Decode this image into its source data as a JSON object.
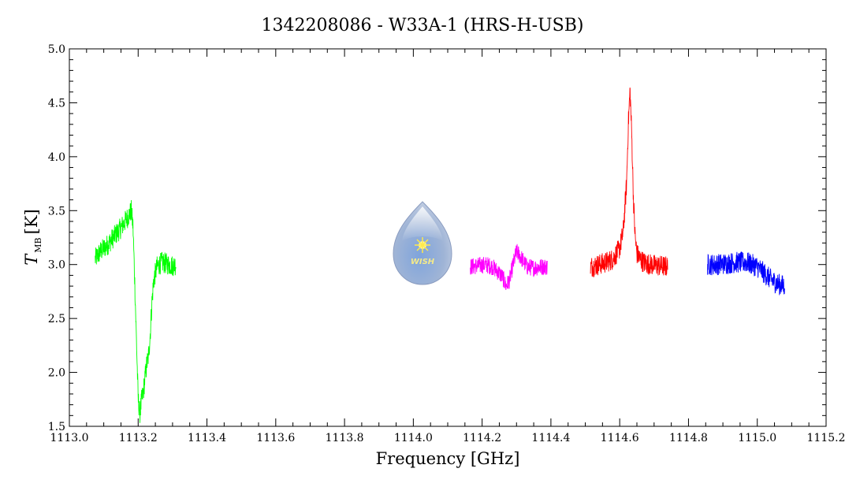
{
  "chart_data": {
    "type": "line",
    "title": "1342208086 - W33A-1 (HRS-H-USB)",
    "xlabel": "Frequency [GHz]",
    "ylabel_main": "T",
    "ylabel_sub": "MB",
    "ylabel_unit": "[K]",
    "xlim": [
      1113.0,
      1115.2
    ],
    "ylim": [
      1.5,
      5.0
    ],
    "x_ticks": [
      "1113.0",
      "1113.2",
      "1113.4",
      "1113.6",
      "1113.8",
      "1114.0",
      "1114.2",
      "1114.4",
      "1114.6",
      "1114.8",
      "1115.0",
      "1115.2"
    ],
    "y_ticks": [
      "1.5",
      "2.0",
      "2.5",
      "3.0",
      "3.5",
      "4.0",
      "4.5",
      "5.0"
    ],
    "grid": false,
    "logo_text": "WISH",
    "series": [
      {
        "color": "#00ff00",
        "x": [
          1113.075,
          1113.09,
          1113.11,
          1113.13,
          1113.15,
          1113.17,
          1113.18,
          1113.185,
          1113.19,
          1113.195,
          1113.2,
          1113.205,
          1113.21,
          1113.215,
          1113.22,
          1113.225,
          1113.23,
          1113.235,
          1113.24,
          1113.245,
          1113.25,
          1113.255,
          1113.26,
          1113.27,
          1113.28,
          1113.29,
          1113.3,
          1113.31
        ],
        "y": [
          3.05,
          3.12,
          3.18,
          3.26,
          3.34,
          3.44,
          3.5,
          3.35,
          2.85,
          2.3,
          1.75,
          1.62,
          1.74,
          1.82,
          1.95,
          2.08,
          2.15,
          2.35,
          2.65,
          2.85,
          2.92,
          2.98,
          3.0,
          3.02,
          3.01,
          3.0,
          2.99,
          3.0
        ],
        "noise": 0.05
      },
      {
        "color": "#ff00ff",
        "x": [
          1114.165,
          1114.19,
          1114.21,
          1114.23,
          1114.24,
          1114.25,
          1114.26,
          1114.27,
          1114.28,
          1114.29,
          1114.3,
          1114.31,
          1114.32,
          1114.33,
          1114.35,
          1114.37,
          1114.39
        ],
        "y": [
          2.98,
          2.99,
          3.0,
          2.98,
          2.95,
          2.92,
          2.88,
          2.8,
          2.86,
          3.0,
          3.12,
          3.08,
          3.03,
          2.98,
          2.97,
          2.98,
          2.98
        ],
        "noise": 0.04
      },
      {
        "color": "#ff0000",
        "x": [
          1114.515,
          1114.54,
          1114.56,
          1114.58,
          1114.6,
          1114.61,
          1114.62,
          1114.625,
          1114.63,
          1114.635,
          1114.64,
          1114.645,
          1114.65,
          1114.66,
          1114.67,
          1114.69,
          1114.71,
          1114.74
        ],
        "y": [
          2.98,
          3.0,
          3.02,
          3.05,
          3.15,
          3.3,
          3.75,
          4.3,
          4.62,
          4.2,
          3.6,
          3.25,
          3.1,
          3.05,
          3.02,
          3.0,
          2.99,
          2.98
        ],
        "noise": 0.05
      },
      {
        "color": "#0000ff",
        "x": [
          1114.855,
          1114.88,
          1114.91,
          1114.94,
          1114.97,
          1115.0,
          1115.02,
          1115.04,
          1115.06,
          1115.08
        ],
        "y": [
          3.0,
          3.0,
          3.01,
          3.02,
          3.02,
          2.98,
          2.92,
          2.86,
          2.82,
          2.8
        ],
        "noise": 0.05
      }
    ]
  }
}
